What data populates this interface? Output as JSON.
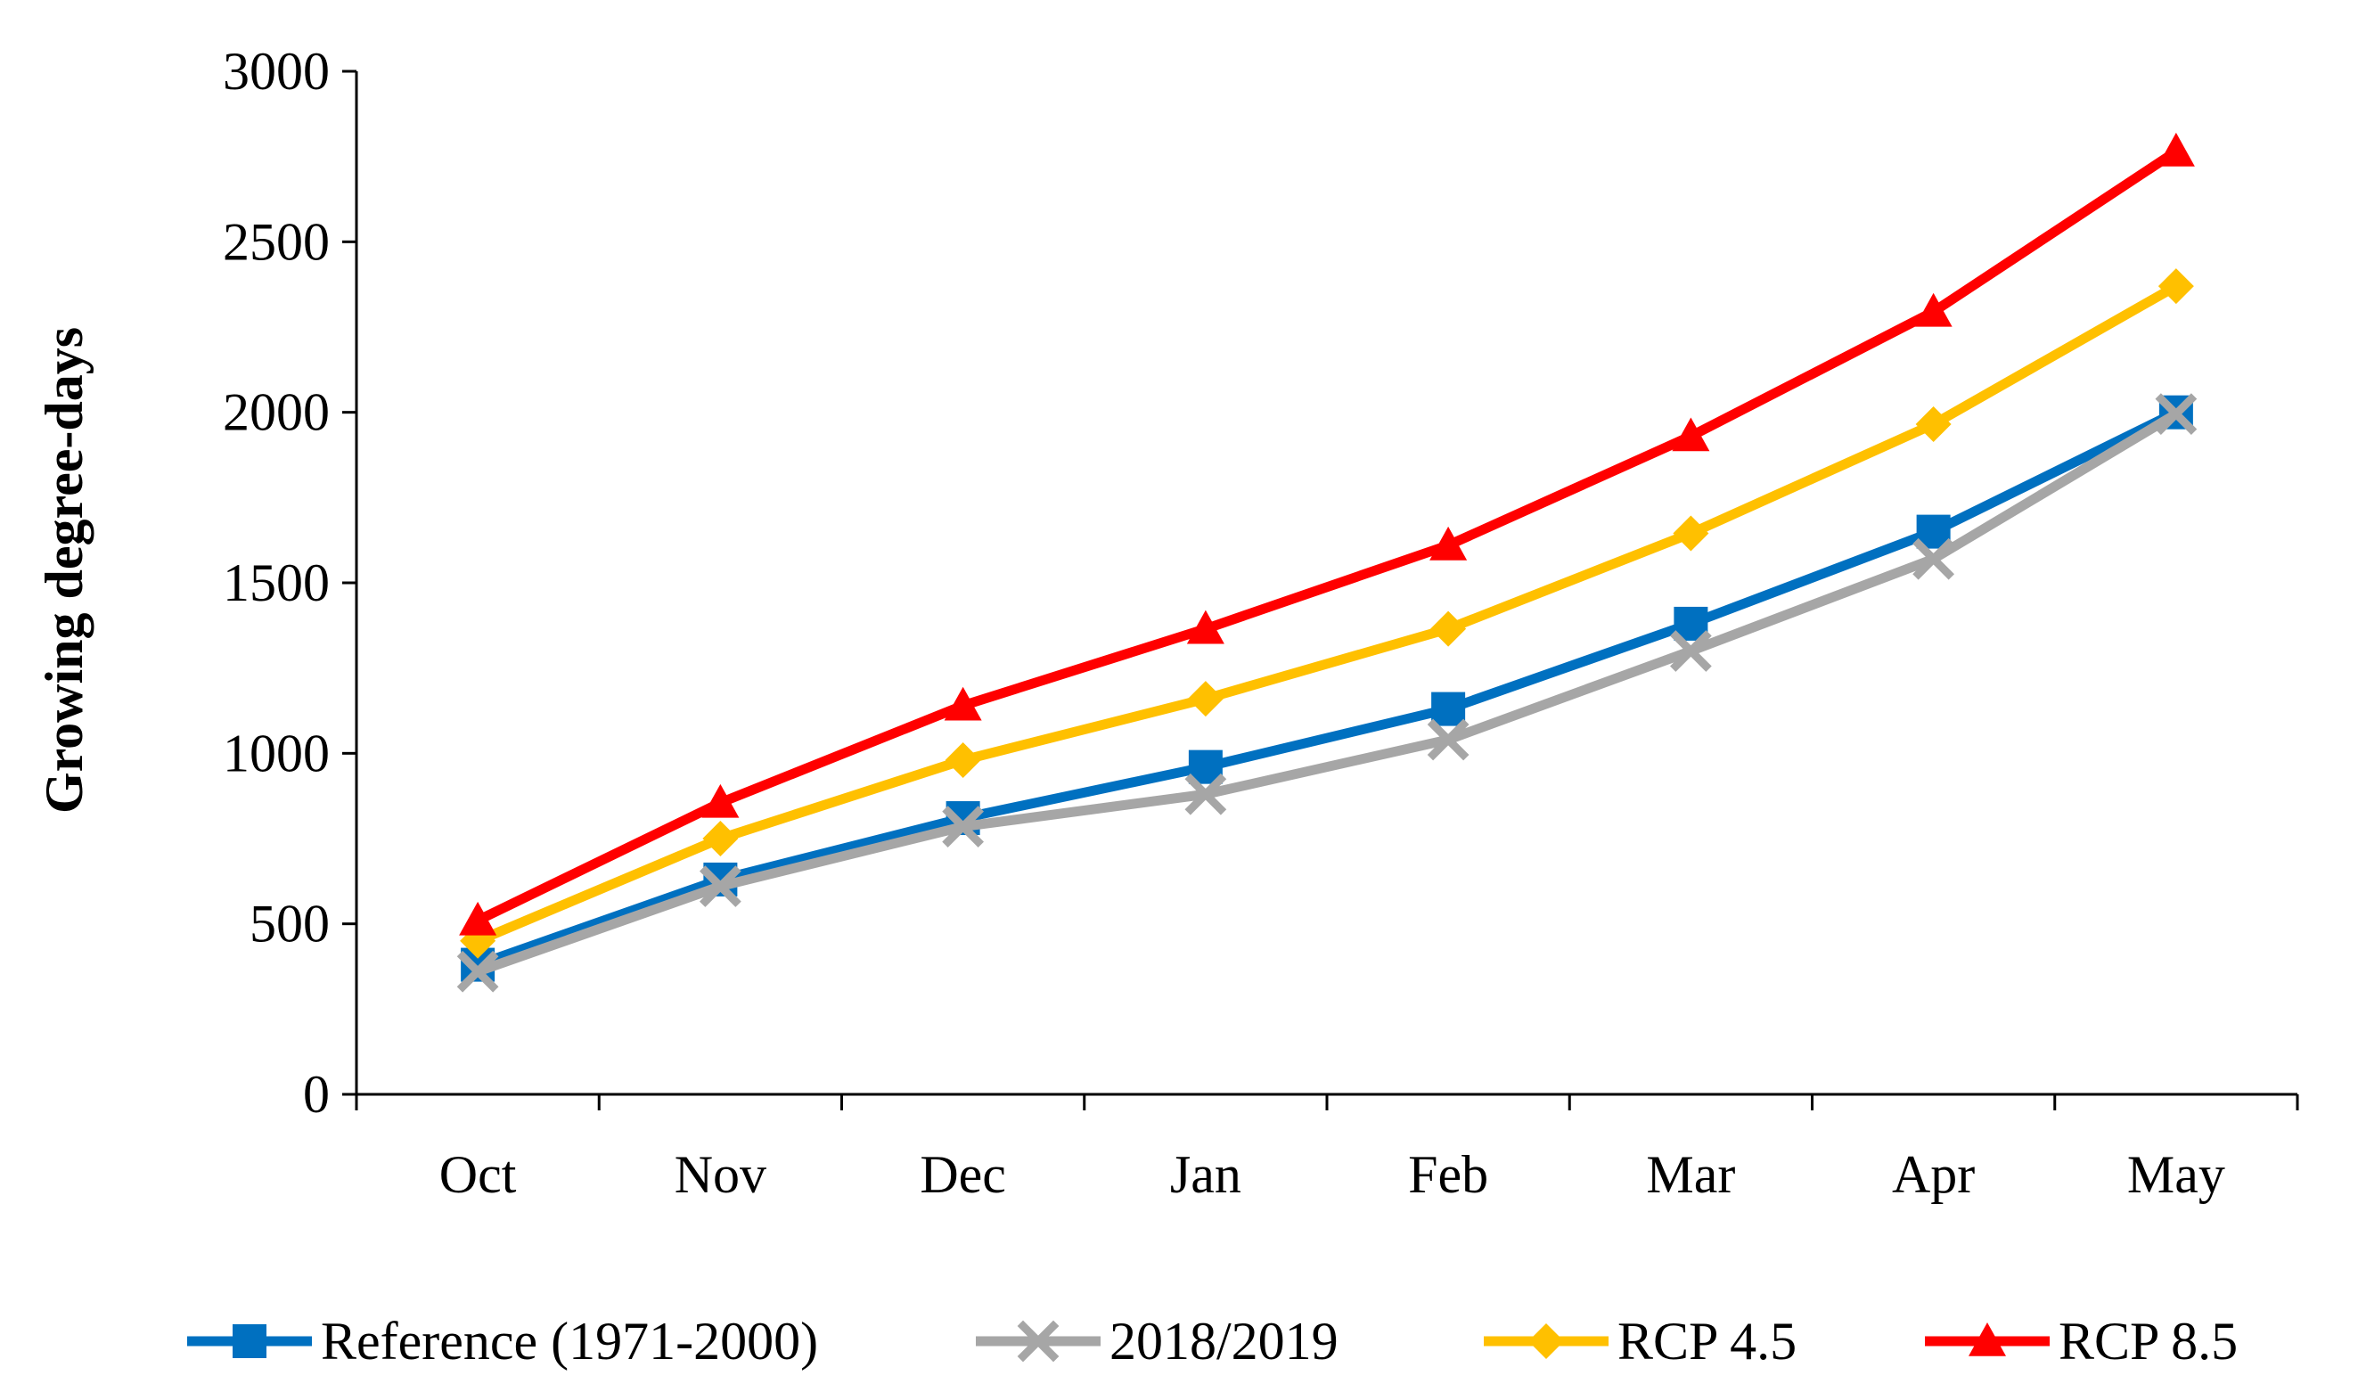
{
  "chart_data": {
    "type": "line",
    "title": "",
    "xlabel": "",
    "ylabel": "Growing degree-days",
    "categories": [
      "Oct",
      "Nov",
      "Dec",
      "Jan",
      "Feb",
      "Mar",
      "Apr",
      "May"
    ],
    "ylim": [
      0,
      3000
    ],
    "yticks": [
      0,
      500,
      1000,
      1500,
      2000,
      2500,
      3000
    ],
    "grid": false,
    "legend_position": "bottom",
    "series": [
      {
        "name": "Reference (1971-2000)",
        "color": "#0070C0",
        "marker": "square",
        "values": [
          380,
          630,
          810,
          960,
          1130,
          1380,
          1650,
          2000
        ]
      },
      {
        "name": "2018/2019",
        "color": "#A6A6A6",
        "marker": "x",
        "values": [
          360,
          610,
          785,
          880,
          1040,
          1300,
          1570,
          1995
        ]
      },
      {
        "name": "RCP 4.5",
        "color": "#FFC000",
        "marker": "diamond",
        "values": [
          450,
          750,
          980,
          1160,
          1365,
          1645,
          1965,
          2370
        ]
      },
      {
        "name": "RCP 8.5",
        "color": "#FF0000",
        "marker": "triangle",
        "values": [
          510,
          855,
          1140,
          1365,
          1610,
          1930,
          2295,
          2765
        ]
      }
    ]
  }
}
